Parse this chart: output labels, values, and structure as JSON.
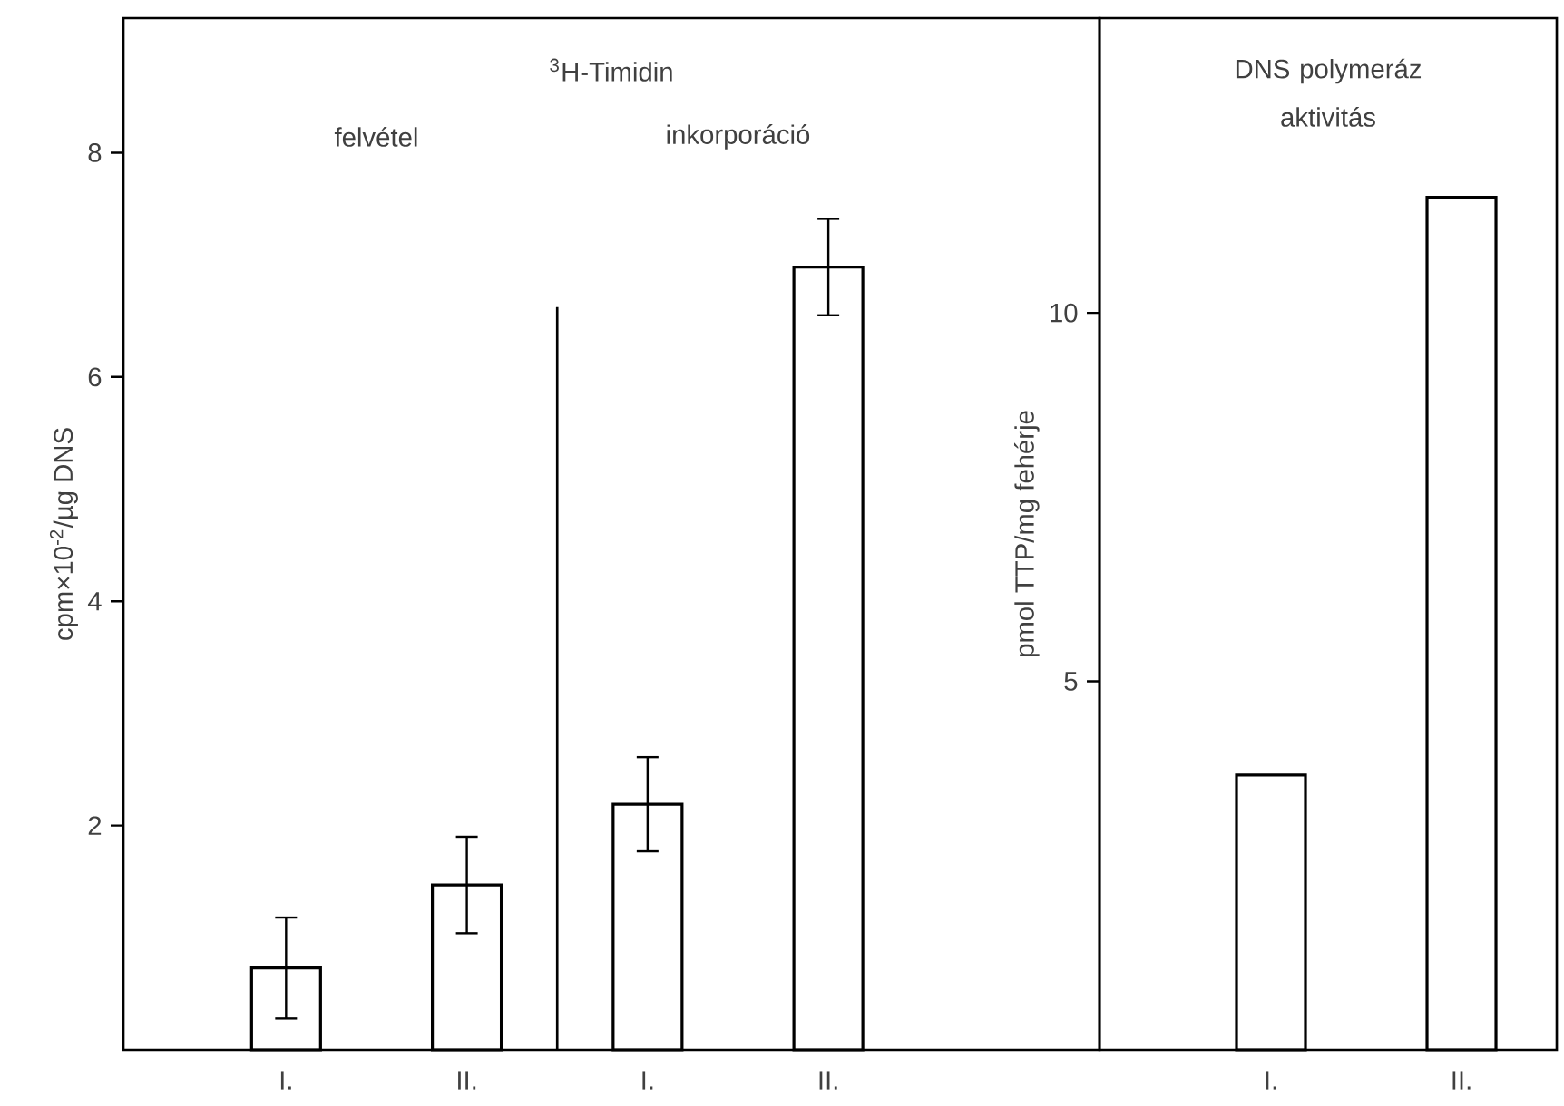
{
  "chart_data": [
    {
      "type": "bar",
      "title": "$^{3}$H-Timidin",
      "ylabel": "cpm×10$^{-2}$/µg DNS",
      "categories": [
        "I.",
        "II.",
        "I.",
        "II."
      ],
      "values": [
        0.73,
        1.47,
        2.19,
        6.98
      ],
      "errors": [
        0.45,
        0.43,
        0.42,
        0.43
      ],
      "color": "#ffffff",
      "annotations": [
        "felvétel",
        "inkorporáció"
      ],
      "ylim": [
        0,
        9.2
      ],
      "yticks": [
        2,
        4,
        6,
        8
      ]
    },
    {
      "type": "bar",
      "title": "DNS polymeráz aktivitás",
      "ylabel": "pmol TTP/mg fehérje",
      "categories": [
        "I.",
        "II."
      ],
      "values": [
        3.73,
        11.57
      ],
      "color": "#ffffff",
      "ylim": [
        0,
        14
      ],
      "yticks": [
        5,
        10
      ]
    }
  ]
}
